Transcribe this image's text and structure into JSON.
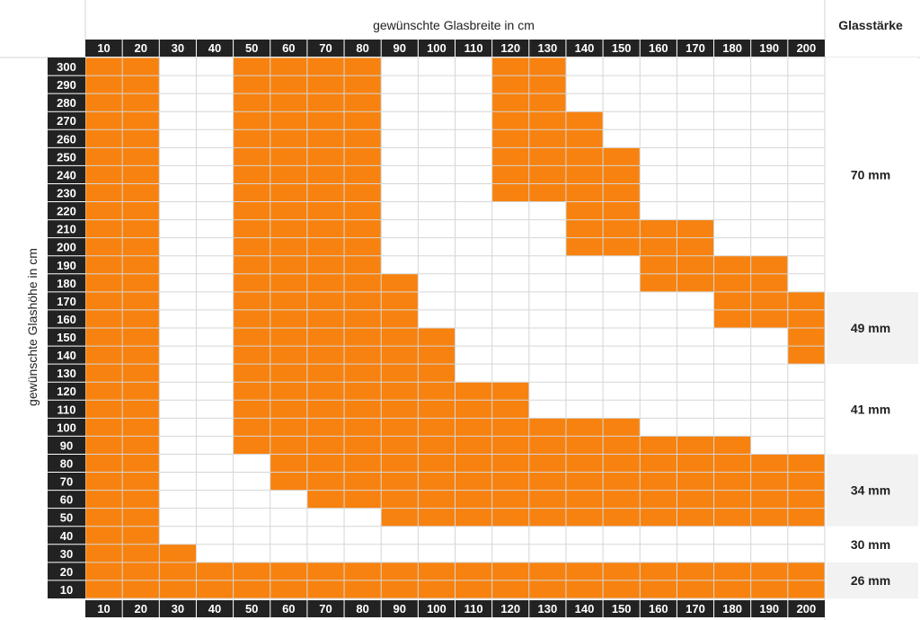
{
  "chart_data": {
    "type": "heatmap",
    "title": "",
    "xlabel": "gewünschte Glasbreite in cm",
    "ylabel": "gewünschte Glashöhe in cm",
    "thickness_header": "Glasstärke",
    "x": [
      10,
      20,
      30,
      40,
      50,
      60,
      70,
      80,
      90,
      100,
      110,
      120,
      130,
      140,
      150,
      160,
      170,
      180,
      190,
      200
    ],
    "y": [
      300,
      290,
      280,
      270,
      260,
      250,
      240,
      230,
      220,
      210,
      200,
      190,
      180,
      170,
      160,
      150,
      140,
      130,
      120,
      110,
      100,
      90,
      80,
      70,
      60,
      50,
      40,
      30,
      20,
      10
    ],
    "cells_note_values": "each row lists the glass widths (cm) that are filled orange for that glass height (cm)",
    "filled": [
      {
        "height": 300,
        "widths": [
          10,
          20,
          50,
          60,
          70,
          80,
          120,
          130
        ]
      },
      {
        "height": 290,
        "widths": [
          10,
          20,
          50,
          60,
          70,
          80,
          120,
          130
        ]
      },
      {
        "height": 280,
        "widths": [
          10,
          20,
          50,
          60,
          70,
          80,
          120,
          130
        ]
      },
      {
        "height": 270,
        "widths": [
          10,
          20,
          50,
          60,
          70,
          80,
          120,
          130,
          140
        ]
      },
      {
        "height": 260,
        "widths": [
          10,
          20,
          50,
          60,
          70,
          80,
          120,
          130,
          140
        ]
      },
      {
        "height": 250,
        "widths": [
          10,
          20,
          50,
          60,
          70,
          80,
          120,
          130,
          140,
          150
        ]
      },
      {
        "height": 240,
        "widths": [
          10,
          20,
          50,
          60,
          70,
          80,
          120,
          130,
          140,
          150
        ]
      },
      {
        "height": 230,
        "widths": [
          10,
          20,
          50,
          60,
          70,
          80,
          120,
          130,
          140,
          150
        ]
      },
      {
        "height": 220,
        "widths": [
          10,
          20,
          50,
          60,
          70,
          80,
          140,
          150
        ]
      },
      {
        "height": 210,
        "widths": [
          10,
          20,
          50,
          60,
          70,
          80,
          140,
          150,
          160,
          170
        ]
      },
      {
        "height": 200,
        "widths": [
          10,
          20,
          50,
          60,
          70,
          80,
          140,
          150,
          160,
          170
        ]
      },
      {
        "height": 190,
        "widths": [
          10,
          20,
          50,
          60,
          70,
          80,
          160,
          170,
          180,
          190
        ]
      },
      {
        "height": 180,
        "widths": [
          10,
          20,
          50,
          60,
          70,
          80,
          90,
          160,
          170,
          180,
          190
        ]
      },
      {
        "height": 170,
        "widths": [
          10,
          20,
          50,
          60,
          70,
          80,
          90,
          180,
          190,
          200
        ]
      },
      {
        "height": 160,
        "widths": [
          10,
          20,
          50,
          60,
          70,
          80,
          90,
          180,
          190,
          200
        ]
      },
      {
        "height": 150,
        "widths": [
          10,
          20,
          50,
          60,
          70,
          80,
          90,
          100,
          200
        ]
      },
      {
        "height": 140,
        "widths": [
          10,
          20,
          50,
          60,
          70,
          80,
          90,
          100,
          200
        ]
      },
      {
        "height": 130,
        "widths": [
          10,
          20,
          50,
          60,
          70,
          80,
          90,
          100
        ]
      },
      {
        "height": 120,
        "widths": [
          10,
          20,
          50,
          60,
          70,
          80,
          90,
          100,
          110,
          120
        ]
      },
      {
        "height": 110,
        "widths": [
          10,
          20,
          50,
          60,
          70,
          80,
          90,
          100,
          110,
          120
        ]
      },
      {
        "height": 100,
        "widths": [
          10,
          20,
          50,
          60,
          70,
          80,
          90,
          100,
          110,
          120,
          130,
          140,
          150
        ]
      },
      {
        "height": 90,
        "widths": [
          10,
          20,
          50,
          60,
          70,
          80,
          90,
          100,
          110,
          120,
          130,
          140,
          150,
          160,
          170,
          180
        ]
      },
      {
        "height": 80,
        "widths": [
          10,
          20,
          60,
          70,
          80,
          90,
          100,
          110,
          120,
          130,
          140,
          150,
          160,
          170,
          180,
          190,
          200
        ]
      },
      {
        "height": 70,
        "widths": [
          10,
          20,
          60,
          70,
          80,
          90,
          100,
          110,
          120,
          130,
          140,
          150,
          160,
          170,
          180,
          190,
          200
        ]
      },
      {
        "height": 60,
        "widths": [
          10,
          20,
          70,
          80,
          90,
          100,
          110,
          120,
          130,
          140,
          150,
          160,
          170,
          180,
          190,
          200
        ]
      },
      {
        "height": 50,
        "widths": [
          10,
          20,
          90,
          100,
          110,
          120,
          130,
          140,
          150,
          160,
          170,
          180,
          190,
          200
        ]
      },
      {
        "height": 40,
        "widths": [
          10,
          20
        ]
      },
      {
        "height": 30,
        "widths": [
          10,
          20,
          30
        ]
      },
      {
        "height": 20,
        "widths": [
          10,
          20,
          30,
          40,
          50,
          60,
          70,
          80,
          90,
          100,
          110,
          120,
          130,
          140,
          150,
          160,
          170,
          180,
          190,
          200
        ]
      },
      {
        "height": 10,
        "widths": [
          10,
          20,
          30,
          40,
          50,
          60,
          70,
          80,
          90,
          100,
          110,
          120,
          130,
          140,
          150,
          160,
          170,
          180,
          190,
          200
        ]
      }
    ],
    "thickness_bands": [
      {
        "label": "70 mm",
        "from_height": 300,
        "to_height": 180,
        "shaded": false
      },
      {
        "label": "49 mm",
        "from_height": 170,
        "to_height": 140,
        "shaded": true
      },
      {
        "label": "41 mm",
        "from_height": 130,
        "to_height": 90,
        "shaded": false
      },
      {
        "label": "34 mm",
        "from_height": 80,
        "to_height": 50,
        "shaded": true
      },
      {
        "label": "30 mm",
        "from_height": 40,
        "to_height": 30,
        "shaded": false
      },
      {
        "label": "26 mm",
        "from_height": 20,
        "to_height": 10,
        "shaded": true
      }
    ],
    "grid": true,
    "colors": {
      "filled": "#f7820f",
      "empty": "#ffffff",
      "grid": "#d6d6d6",
      "tick_bg": "#222222",
      "tick_text": "#ffffff",
      "band_shade": "#f2f2f2"
    }
  }
}
